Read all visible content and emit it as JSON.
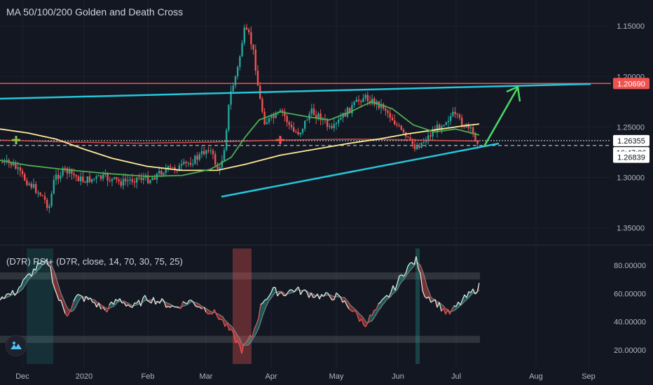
{
  "header": {
    "title": "MA 50/100/200 Golden and Death Cross",
    "rsi_title": "(D7R) RSI+ (D7R, close, 14, 70, 30, 75, 25)"
  },
  "colors": {
    "background": "#131722",
    "candle_up": "#26a69a",
    "candle_down": "#ef5350",
    "ma50": "#4caf50",
    "ma200": "#ffeb99",
    "ma_red": "#ef5350",
    "trendline": "#26c6da",
    "arrow": "#4cd964",
    "label_red": "#ef5350",
    "label_white": "#ffffff"
  },
  "chart_data": [
    {
      "type": "candlestick",
      "title": "MA 50/100/200 Golden and Death Cross",
      "y_axis_inverted": true,
      "ylim": [
        1.145,
        1.36
      ],
      "y_ticks": [
        "1.15000",
        "1.20000",
        "1.25000",
        "1.30000",
        "1.35000"
      ],
      "x_ticks": [
        "Dec",
        "2020",
        "Feb",
        "Mar",
        "Apr",
        "May",
        "Jun",
        "Jul",
        "Aug",
        "Sep"
      ],
      "price_labels": [
        {
          "label": "1.20690",
          "value": 1.2069,
          "style": "red"
        },
        {
          "label": "1.26355",
          "value": 1.26355,
          "style": "white"
        },
        {
          "label": "16:47:26",
          "value": 1.2755,
          "style": "white"
        },
        {
          "label": "1.26839",
          "value": 1.28,
          "style": "white"
        }
      ],
      "horizontal_lines": [
        {
          "value": 1.2069,
          "color": "red",
          "style": "solid"
        },
        {
          "value": 1.26355,
          "color": "white",
          "style": "dotted"
        },
        {
          "value": 1.26839,
          "color": "white",
          "style": "dashed"
        }
      ],
      "series_note": "Price candles with moving averages (green and yellow), red level line and cyan trendlines"
    },
    {
      "type": "line",
      "title": "(D7R) RSI+ (D7R, close, 14, 70, 30, 75, 25)",
      "ylim": [
        10,
        92
      ],
      "y_ticks": [
        "20.00000",
        "40.00000",
        "60.00000",
        "80.00000"
      ],
      "bands": [
        70,
        75,
        25,
        30
      ]
    }
  ]
}
